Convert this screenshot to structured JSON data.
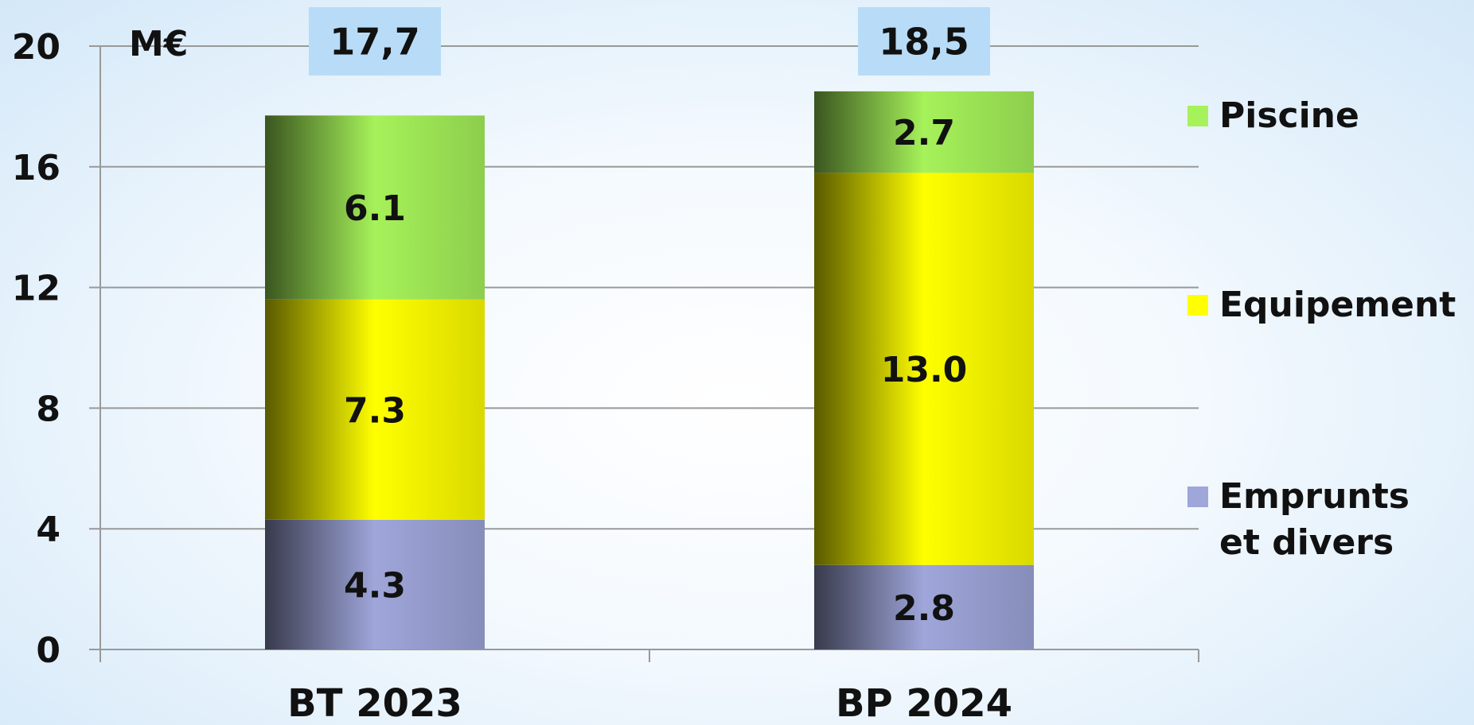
{
  "chart_data": {
    "type": "stacked_bar",
    "unit": "M€",
    "categories": [
      "BT 2023",
      "BP 2024"
    ],
    "series": [
      {
        "name": "Emprunts et divers",
        "color": "#9fa6da",
        "values": [
          4.3,
          2.8
        ],
        "value_labels": [
          "4.3",
          "2.8"
        ]
      },
      {
        "name": "Equipement",
        "color": "#ffff00",
        "values": [
          7.3,
          13.0
        ],
        "value_labels": [
          "7.3",
          "13.0"
        ]
      },
      {
        "name": "Piscine",
        "color": "#a6f25a",
        "values": [
          6.1,
          2.7
        ],
        "value_labels": [
          "6.1",
          "2.7"
        ]
      }
    ],
    "totals": [
      17.7,
      18.5
    ],
    "total_labels": [
      "17,7",
      "18,5"
    ],
    "ylim": [
      0,
      20
    ],
    "yticks": [
      0,
      4,
      8,
      12,
      16,
      20
    ],
    "grid": true
  }
}
